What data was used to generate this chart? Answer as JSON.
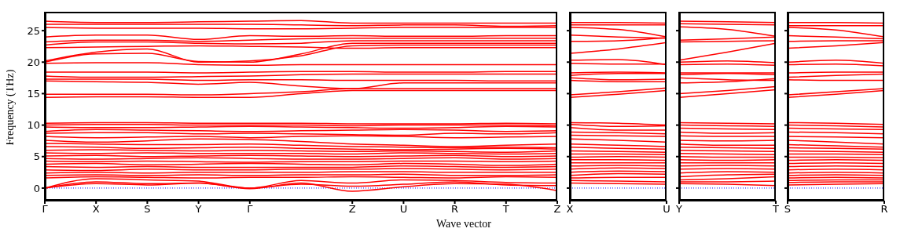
{
  "chart_data": [
    {
      "type": "line",
      "ylabel": "Frequency (THz)",
      "xlabel": "Wave vector",
      "categories": [
        "Γ",
        "X",
        "S",
        "Y",
        "Γ",
        null,
        "Z",
        "U",
        "R",
        "T",
        "Z"
      ],
      "ylim": [
        -2,
        28
      ],
      "yticks": [
        0,
        5,
        10,
        15,
        20,
        25
      ],
      "ref_lines": [
        {
          "axis": "y",
          "value": 0,
          "color": "#0000ff",
          "line_style": "dotted"
        }
      ],
      "series": [
        {
          "color": "#ff0000",
          "values": [
            26.5,
            26.3,
            26.3,
            26.4,
            26.5,
            26.6,
            26.2,
            26.2,
            26.2,
            26.2,
            26.2
          ]
        },
        {
          "color": "#ff0000",
          "values": [
            26.0,
            26.0,
            26.0,
            26.0,
            26.0,
            25.9,
            25.8,
            25.9,
            25.9,
            25.7,
            25.8
          ]
        },
        {
          "color": "#ff0000",
          "values": [
            25.5,
            25.4,
            25.4,
            25.4,
            25.3,
            25.3,
            25.4,
            25.5,
            25.5,
            25.5,
            25.5
          ]
        },
        {
          "color": "#ff0000",
          "values": [
            24.0,
            24.3,
            24.3,
            23.6,
            24.2,
            24.1,
            24.2,
            24.1,
            24.1,
            24.2,
            24.2
          ]
        },
        {
          "color": "#ff0000",
          "values": [
            23.2,
            23.5,
            23.5,
            23.3,
            23.5,
            23.7,
            23.8,
            23.8,
            23.8,
            23.8,
            23.8
          ]
        },
        {
          "color": "#ff0000",
          "values": [
            22.7,
            23.2,
            23.2,
            23.0,
            22.9,
            23.0,
            23.4,
            23.4,
            23.4,
            23.4,
            23.4
          ]
        },
        {
          "color": "#ff0000",
          "values": [
            22.3,
            22.4,
            22.5,
            22.6,
            22.5,
            22.4,
            22.2,
            22.3,
            22.3,
            22.3,
            22.3
          ]
        },
        {
          "color": "#ff0000",
          "values": [
            20.2,
            21.6,
            22.1,
            20.0,
            20.2,
            21.0,
            22.6,
            22.7,
            22.7,
            22.7,
            22.7
          ]
        },
        {
          "color": "#ff0000",
          "values": [
            20.0,
            21.3,
            21.4,
            20.1,
            20.0,
            21.3,
            23.0,
            23.0,
            23.0,
            23.0,
            23.0
          ]
        },
        {
          "color": "#ff0000",
          "values": [
            19.8,
            19.9,
            19.9,
            19.6,
            19.5,
            19.6,
            19.6,
            19.6,
            19.6,
            19.6,
            19.6
          ]
        },
        {
          "color": "#ff0000",
          "values": [
            18.4,
            18.4,
            18.4,
            18.3,
            18.4,
            18.5,
            18.5,
            18.4,
            18.4,
            18.5,
            18.5
          ]
        },
        {
          "color": "#ff0000",
          "values": [
            17.8,
            17.6,
            17.6,
            17.7,
            17.8,
            18.0,
            18.1,
            18.1,
            18.1,
            18.1,
            18.1
          ]
        },
        {
          "color": "#ff0000",
          "values": [
            17.3,
            17.3,
            17.3,
            17.1,
            17.2,
            17.2,
            17.1,
            17.1,
            17.1,
            17.0,
            17.0
          ]
        },
        {
          "color": "#ff0000",
          "values": [
            17.0,
            16.9,
            16.8,
            16.5,
            16.8,
            16.2,
            15.8,
            16.7,
            16.7,
            16.7,
            16.7
          ]
        },
        {
          "color": "#ff0000",
          "values": [
            14.9,
            14.9,
            14.9,
            14.8,
            15.0,
            15.3,
            15.8,
            15.8,
            15.8,
            15.8,
            15.8
          ]
        },
        {
          "color": "#ff0000",
          "values": [
            14.4,
            14.5,
            14.5,
            14.4,
            14.4,
            15.0,
            15.5,
            15.5,
            15.5,
            15.5,
            15.5
          ]
        },
        {
          "color": "#ff0000",
          "values": [
            10.3,
            10.4,
            10.4,
            10.3,
            10.3,
            10.3,
            10.2,
            10.2,
            10.2,
            10.3,
            10.2
          ]
        },
        {
          "color": "#ff0000",
          "values": [
            10.0,
            10.1,
            10.1,
            10.0,
            10.0,
            10.0,
            9.9,
            10.0,
            10.0,
            10.0,
            9.9
          ]
        },
        {
          "color": "#ff0000",
          "values": [
            9.7,
            9.6,
            9.6,
            9.7,
            9.8,
            9.7,
            9.6,
            9.5,
            9.6,
            9.8,
            9.7
          ]
        },
        {
          "color": "#ff0000",
          "values": [
            9.0,
            9.3,
            9.2,
            9.1,
            9.0,
            9.1,
            9.2,
            9.3,
            9.2,
            9.0,
            9.1
          ]
        },
        {
          "color": "#ff0000",
          "values": [
            8.7,
            8.8,
            8.8,
            8.6,
            8.7,
            8.6,
            8.5,
            8.4,
            8.7,
            8.6,
            8.8
          ]
        },
        {
          "color": "#ff0000",
          "values": [
            8.2,
            8.0,
            8.1,
            8.2,
            8.0,
            8.2,
            8.3,
            8.2,
            8.0,
            8.1,
            8.2
          ]
        },
        {
          "color": "#ff0000",
          "values": [
            7.6,
            7.3,
            7.5,
            7.8,
            7.7,
            7.4,
            7.0,
            6.8,
            6.6,
            6.8,
            7.0
          ]
        },
        {
          "color": "#ff0000",
          "values": [
            7.1,
            7.0,
            6.9,
            6.9,
            7.0,
            6.8,
            6.6,
            6.5,
            6.4,
            6.5,
            6.4
          ]
        },
        {
          "color": "#ff0000",
          "values": [
            6.6,
            6.5,
            6.3,
            6.4,
            6.5,
            6.3,
            6.2,
            6.1,
            6.2,
            6.3,
            6.2
          ]
        },
        {
          "color": "#ff0000",
          "values": [
            6.0,
            6.1,
            6.0,
            5.9,
            6.0,
            5.9,
            5.8,
            5.9,
            5.8,
            5.7,
            5.9
          ]
        },
        {
          "color": "#ff0000",
          "values": [
            5.6,
            5.5,
            5.6,
            5.5,
            5.5,
            5.5,
            5.4,
            5.6,
            5.5,
            5.4,
            5.5
          ]
        },
        {
          "color": "#ff0000",
          "values": [
            5.1,
            5.2,
            5.0,
            5.1,
            5.2,
            5.1,
            5.0,
            5.1,
            5.2,
            5.0,
            5.1
          ]
        },
        {
          "color": "#ff0000",
          "values": [
            4.7,
            4.6,
            4.7,
            4.8,
            4.7,
            4.6,
            4.6,
            4.7,
            4.8,
            4.6,
            4.7
          ]
        },
        {
          "color": "#ff0000",
          "values": [
            4.3,
            4.2,
            4.3,
            4.2,
            4.1,
            4.2,
            4.2,
            4.3,
            4.3,
            4.2,
            4.3
          ]
        },
        {
          "color": "#ff0000",
          "values": [
            3.8,
            3.9,
            3.7,
            3.8,
            3.9,
            3.8,
            3.7,
            3.9,
            3.8,
            3.6,
            3.8
          ]
        },
        {
          "color": "#ff0000",
          "values": [
            3.4,
            3.3,
            3.4,
            3.3,
            3.3,
            3.3,
            3.3,
            3.5,
            3.4,
            3.3,
            3.4
          ]
        },
        {
          "color": "#ff0000",
          "values": [
            2.9,
            2.8,
            3.0,
            2.9,
            2.9,
            3.0,
            3.0,
            3.1,
            3.0,
            2.9,
            3.0
          ]
        },
        {
          "color": "#ff0000",
          "values": [
            2.4,
            2.5,
            2.4,
            2.5,
            2.5,
            2.5,
            2.6,
            2.6,
            2.5,
            2.5,
            2.5
          ]
        },
        {
          "color": "#ff0000",
          "values": [
            2.0,
            2.1,
            2.0,
            2.1,
            2.0,
            2.1,
            2.1,
            2.2,
            2.0,
            2.0,
            2.1
          ]
        },
        {
          "color": "#ff0000",
          "values": [
            1.6,
            1.8,
            1.7,
            1.6,
            1.7,
            1.7,
            1.8,
            1.7,
            1.6,
            1.8,
            1.7
          ]
        },
        {
          "color": "#ff0000",
          "values": [
            0,
            1.5,
            1.3,
            1.1,
            0,
            1.2,
            0.8,
            1.3,
            1.2,
            0.9,
            0.8
          ]
        },
        {
          "color": "#ff0000",
          "values": [
            0,
            1.0,
            0.7,
            0.8,
            0,
            0.6,
            0.3,
            0.6,
            1.0,
            0.5,
            0.4
          ]
        },
        {
          "color": "#ff0000",
          "values": [
            0,
            0.7,
            0.5,
            0.8,
            -0.1,
            0.8,
            -0.5,
            0.2,
            0.7,
            0.6,
            -0.4
          ]
        }
      ]
    },
    {
      "type": "line",
      "tick_labels": "x",
      "categories": [
        "X",
        null,
        "U"
      ],
      "ylim": [
        -2,
        28
      ],
      "yticks": [
        0,
        5,
        10,
        15,
        20,
        25
      ],
      "ref_lines": [
        {
          "axis": "y",
          "value": 0,
          "color": "#0000ff",
          "line_style": "dotted"
        }
      ],
      "series": [
        {
          "color": "#ff0000",
          "values": [
            26.3,
            26.3,
            26.2
          ]
        },
        {
          "color": "#ff0000",
          "values": [
            25.9,
            25.9,
            25.9
          ]
        },
        {
          "color": "#ff0000",
          "values": [
            25.5,
            25.2,
            24.0
          ]
        },
        {
          "color": "#ff0000",
          "values": [
            24.3,
            24.0,
            23.8
          ]
        },
        {
          "color": "#ff0000",
          "values": [
            23.3,
            23.4,
            23.9
          ]
        },
        {
          "color": "#ff0000",
          "values": [
            21.4,
            22.1,
            23.1
          ]
        },
        {
          "color": "#ff0000",
          "values": [
            20.3,
            20.4,
            19.6
          ]
        },
        {
          "color": "#ff0000",
          "values": [
            19.8,
            19.7,
            19.7
          ]
        },
        {
          "color": "#ff0000",
          "values": [
            18.3,
            18.4,
            18.3
          ]
        },
        {
          "color": "#ff0000",
          "values": [
            17.9,
            18.2,
            18.2
          ]
        },
        {
          "color": "#ff0000",
          "values": [
            17.5,
            17.2,
            17.3
          ]
        },
        {
          "color": "#ff0000",
          "values": [
            17.1,
            16.9,
            16.9
          ]
        },
        {
          "color": "#ff0000",
          "values": [
            14.8,
            15.3,
            15.9
          ]
        },
        {
          "color": "#ff0000",
          "values": [
            14.4,
            14.9,
            15.5
          ]
        },
        {
          "color": "#ff0000",
          "values": [
            10.4,
            10.3,
            10.0
          ]
        },
        {
          "color": "#ff0000",
          "values": [
            10.1,
            9.8,
            9.9
          ]
        },
        {
          "color": "#ff0000",
          "values": [
            9.6,
            9.2,
            9.2
          ]
        },
        {
          "color": "#ff0000",
          "values": [
            8.9,
            8.8,
            8.6
          ]
        },
        {
          "color": "#ff0000",
          "values": [
            8.4,
            8.3,
            8.2
          ]
        },
        {
          "color": "#ff0000",
          "values": [
            7.8,
            7.6,
            7.3
          ]
        },
        {
          "color": "#ff0000",
          "values": [
            7.0,
            6.8,
            6.6
          ]
        },
        {
          "color": "#ff0000",
          "values": [
            6.5,
            6.3,
            6.2
          ]
        },
        {
          "color": "#ff0000",
          "values": [
            5.9,
            5.8,
            5.7
          ]
        },
        {
          "color": "#ff0000",
          "values": [
            5.4,
            5.4,
            5.3
          ]
        },
        {
          "color": "#ff0000",
          "values": [
            4.9,
            5.0,
            4.9
          ]
        },
        {
          "color": "#ff0000",
          "values": [
            4.5,
            4.5,
            4.4
          ]
        },
        {
          "color": "#ff0000",
          "values": [
            4.0,
            4.0,
            4.0
          ]
        },
        {
          "color": "#ff0000",
          "values": [
            3.5,
            3.6,
            3.5
          ]
        },
        {
          "color": "#ff0000",
          "values": [
            3.0,
            3.2,
            3.1
          ]
        },
        {
          "color": "#ff0000",
          "values": [
            2.5,
            2.7,
            2.6
          ]
        },
        {
          "color": "#ff0000",
          "values": [
            2.0,
            2.3,
            2.2
          ]
        },
        {
          "color": "#ff0000",
          "values": [
            1.6,
            1.7,
            1.7
          ]
        },
        {
          "color": "#ff0000",
          "values": [
            1.2,
            1.1,
            1.0
          ]
        },
        {
          "color": "#ff0000",
          "values": [
            0.8,
            0.7,
            0.6
          ]
        }
      ]
    },
    {
      "type": "line",
      "tick_labels": "x",
      "categories": [
        "Y",
        null,
        "T"
      ],
      "ylim": [
        -2,
        28
      ],
      "yticks": [
        0,
        5,
        10,
        15,
        20,
        25
      ],
      "ref_lines": [
        {
          "axis": "y",
          "value": 0,
          "color": "#0000ff",
          "line_style": "dotted"
        }
      ],
      "series": [
        {
          "color": "#ff0000",
          "values": [
            26.5,
            26.4,
            26.3
          ]
        },
        {
          "color": "#ff0000",
          "values": [
            26.1,
            26.0,
            25.9
          ]
        },
        {
          "color": "#ff0000",
          "values": [
            25.6,
            25.2,
            24.1
          ]
        },
        {
          "color": "#ff0000",
          "values": [
            23.5,
            23.7,
            24.0
          ]
        },
        {
          "color": "#ff0000",
          "values": [
            23.2,
            23.3,
            23.4
          ]
        },
        {
          "color": "#ff0000",
          "values": [
            20.3,
            21.6,
            23.0
          ]
        },
        {
          "color": "#ff0000",
          "values": [
            20.0,
            20.2,
            19.9
          ]
        },
        {
          "color": "#ff0000",
          "values": [
            19.6,
            19.7,
            19.5
          ]
        },
        {
          "color": "#ff0000",
          "values": [
            18.3,
            18.3,
            18.3
          ]
        },
        {
          "color": "#ff0000",
          "values": [
            18.0,
            18.2,
            18.0
          ]
        },
        {
          "color": "#ff0000",
          "values": [
            17.5,
            17.2,
            17.1
          ]
        },
        {
          "color": "#ff0000",
          "values": [
            16.7,
            16.9,
            17.4
          ]
        },
        {
          "color": "#ff0000",
          "values": [
            15.0,
            15.5,
            16.1
          ]
        },
        {
          "color": "#ff0000",
          "values": [
            14.4,
            15.0,
            15.6
          ]
        },
        {
          "color": "#ff0000",
          "values": [
            10.4,
            10.3,
            10.2
          ]
        },
        {
          "color": "#ff0000",
          "values": [
            10.0,
            9.9,
            9.8
          ]
        },
        {
          "color": "#ff0000",
          "values": [
            9.5,
            9.4,
            9.3
          ]
        },
        {
          "color": "#ff0000",
          "values": [
            8.9,
            8.7,
            8.8
          ]
        },
        {
          "color": "#ff0000",
          "values": [
            8.3,
            8.2,
            8.2
          ]
        },
        {
          "color": "#ff0000",
          "values": [
            7.6,
            7.5,
            7.6
          ]
        },
        {
          "color": "#ff0000",
          "values": [
            7.0,
            6.8,
            6.8
          ]
        },
        {
          "color": "#ff0000",
          "values": [
            6.5,
            6.4,
            6.3
          ]
        },
        {
          "color": "#ff0000",
          "values": [
            6.0,
            5.9,
            5.8
          ]
        },
        {
          "color": "#ff0000",
          "values": [
            5.5,
            5.4,
            5.3
          ]
        },
        {
          "color": "#ff0000",
          "values": [
            5.0,
            4.9,
            4.9
          ]
        },
        {
          "color": "#ff0000",
          "values": [
            4.5,
            4.4,
            4.5
          ]
        },
        {
          "color": "#ff0000",
          "values": [
            4.0,
            4.0,
            4.0
          ]
        },
        {
          "color": "#ff0000",
          "values": [
            3.5,
            3.6,
            3.5
          ]
        },
        {
          "color": "#ff0000",
          "values": [
            3.0,
            3.1,
            3.0
          ]
        },
        {
          "color": "#ff0000",
          "values": [
            2.4,
            2.6,
            2.5
          ]
        },
        {
          "color": "#ff0000",
          "values": [
            1.8,
            2.1,
            2.2
          ]
        },
        {
          "color": "#ff0000",
          "values": [
            1.3,
            1.5,
            1.8
          ]
        },
        {
          "color": "#ff0000",
          "values": [
            1.0,
            1.0,
            1.1
          ]
        },
        {
          "color": "#ff0000",
          "values": [
            0.7,
            0.6,
            0.4
          ]
        }
      ]
    },
    {
      "type": "line",
      "tick_labels": "x",
      "categories": [
        "S",
        null,
        "R"
      ],
      "ylim": [
        -2,
        28
      ],
      "yticks": [
        0,
        5,
        10,
        15,
        20,
        25
      ],
      "ref_lines": [
        {
          "axis": "y",
          "value": 0,
          "color": "#0000ff",
          "line_style": "dotted"
        }
      ],
      "series": [
        {
          "color": "#ff0000",
          "values": [
            26.3,
            26.3,
            26.2
          ]
        },
        {
          "color": "#ff0000",
          "values": [
            25.8,
            25.8,
            25.8
          ]
        },
        {
          "color": "#ff0000",
          "values": [
            25.5,
            25.1,
            24.0
          ]
        },
        {
          "color": "#ff0000",
          "values": [
            24.2,
            24.0,
            23.7
          ]
        },
        {
          "color": "#ff0000",
          "values": [
            23.3,
            23.4,
            23.4
          ]
        },
        {
          "color": "#ff0000",
          "values": [
            22.2,
            22.6,
            23.1
          ]
        },
        {
          "color": "#ff0000",
          "values": [
            20.0,
            20.3,
            19.8
          ]
        },
        {
          "color": "#ff0000",
          "values": [
            19.6,
            19.7,
            19.4
          ]
        },
        {
          "color": "#ff0000",
          "values": [
            18.3,
            18.4,
            18.4
          ]
        },
        {
          "color": "#ff0000",
          "values": [
            17.6,
            17.9,
            18.1
          ]
        },
        {
          "color": "#ff0000",
          "values": [
            17.2,
            17.1,
            17.1
          ]
        },
        {
          "color": "#ff0000",
          "values": [
            14.8,
            15.3,
            15.8
          ]
        },
        {
          "color": "#ff0000",
          "values": [
            14.4,
            14.9,
            15.5
          ]
        },
        {
          "color": "#ff0000",
          "values": [
            10.4,
            10.3,
            10.1
          ]
        },
        {
          "color": "#ff0000",
          "values": [
            10.0,
            9.9,
            9.7
          ]
        },
        {
          "color": "#ff0000",
          "values": [
            9.5,
            9.4,
            9.3
          ]
        },
        {
          "color": "#ff0000",
          "values": [
            8.9,
            8.8,
            8.6
          ]
        },
        {
          "color": "#ff0000",
          "values": [
            8.2,
            8.1,
            8.0
          ]
        },
        {
          "color": "#ff0000",
          "values": [
            7.6,
            7.3,
            7.0
          ]
        },
        {
          "color": "#ff0000",
          "values": [
            6.9,
            6.7,
            6.5
          ]
        },
        {
          "color": "#ff0000",
          "values": [
            6.4,
            6.3,
            6.2
          ]
        },
        {
          "color": "#ff0000",
          "values": [
            5.9,
            5.8,
            5.7
          ]
        },
        {
          "color": "#ff0000",
          "values": [
            5.4,
            5.4,
            5.3
          ]
        },
        {
          "color": "#ff0000",
          "values": [
            4.9,
            4.9,
            4.8
          ]
        },
        {
          "color": "#ff0000",
          "values": [
            4.4,
            4.5,
            4.4
          ]
        },
        {
          "color": "#ff0000",
          "values": [
            3.9,
            4.0,
            3.9
          ]
        },
        {
          "color": "#ff0000",
          "values": [
            3.4,
            3.5,
            3.4
          ]
        },
        {
          "color": "#ff0000",
          "values": [
            2.9,
            3.0,
            2.9
          ]
        },
        {
          "color": "#ff0000",
          "values": [
            2.4,
            2.5,
            2.4
          ]
        },
        {
          "color": "#ff0000",
          "values": [
            2.0,
            2.1,
            2.0
          ]
        },
        {
          "color": "#ff0000",
          "values": [
            1.6,
            1.7,
            1.6
          ]
        },
        {
          "color": "#ff0000",
          "values": [
            1.2,
            1.3,
            1.3
          ]
        },
        {
          "color": "#ff0000",
          "values": [
            0.9,
            1.0,
            1.0
          ]
        },
        {
          "color": "#ff0000",
          "values": [
            0.5,
            0.6,
            0.7
          ]
        }
      ]
    }
  ]
}
